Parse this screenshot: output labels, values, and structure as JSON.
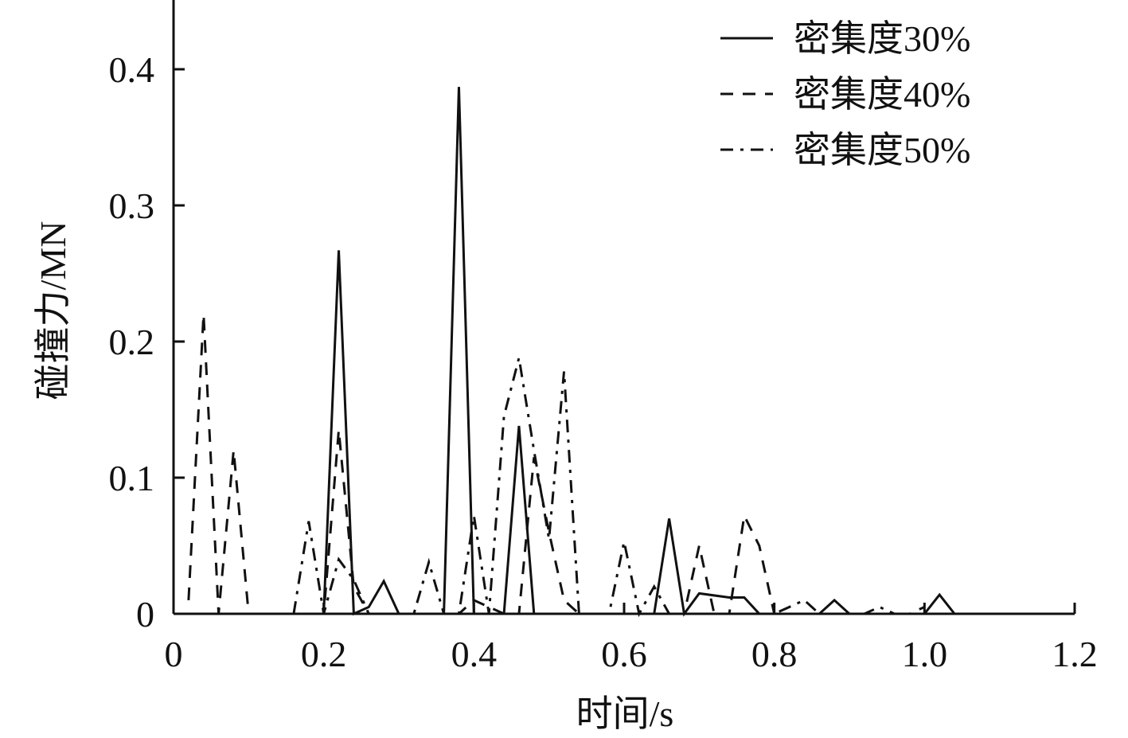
{
  "chart_data": {
    "type": "line",
    "x_label": "时间/s",
    "y_label": "碰撞力/MN",
    "xlim": [
      0,
      1.2
    ],
    "ylim": [
      0,
      0.45
    ],
    "xticks": [
      0,
      0.2,
      0.4,
      0.6,
      0.8,
      {
        "value": 1,
        "label": "1.0"
      },
      1.2
    ],
    "yticks": [
      0,
      0.1,
      0.2,
      0.3,
      0.4
    ],
    "legend": "upper right",
    "series": [
      {
        "name": "密集度30%",
        "color": "#111111",
        "dash": "solid",
        "x": [
          0.2,
          0.22,
          0.24,
          0.26,
          0.28,
          0.3,
          0.36,
          0.38,
          0.4,
          0.44,
          0.46,
          0.48,
          0.64,
          0.66,
          0.68,
          0.7,
          0.74,
          0.76,
          0.78,
          0.86,
          0.88,
          0.9,
          1.0,
          1.02,
          1.04
        ],
        "values": [
          0,
          0.267,
          0,
          0.005,
          0.024,
          0,
          0,
          0.387,
          0,
          0,
          0.138,
          0,
          0,
          0.07,
          0,
          0.015,
          0.012,
          0.012,
          0,
          0,
          0.01,
          0,
          0,
          0.014,
          0
        ]
      },
      {
        "name": "密集度40%",
        "color": "#111111",
        "dash": "dashed",
        "x": [
          0.02,
          0.04,
          0.06,
          0.08,
          0.1,
          0.2,
          0.22,
          0.24,
          0.26,
          0.36,
          0.38,
          0.4,
          0.44,
          0.46,
          0.48,
          0.5,
          0.52,
          0.54,
          0.66,
          0.68,
          0.7,
          0.72,
          0.74,
          0.76,
          0.78,
          0.8,
          0.98,
          1.0
        ],
        "values": [
          0.01,
          0.22,
          0,
          0.12,
          0,
          0,
          0.135,
          0.02,
          0,
          0,
          0,
          0.01,
          0,
          0,
          0.115,
          0.06,
          0.01,
          0,
          0,
          0,
          0.05,
          0,
          0,
          0.072,
          0.05,
          0,
          0,
          0.005
        ]
      },
      {
        "name": "密集度50%",
        "color": "#111111",
        "dash": "dashdot",
        "x": [
          0.16,
          0.18,
          0.2,
          0.22,
          0.24,
          0.26,
          0.32,
          0.34,
          0.36,
          0.38,
          0.4,
          0.42,
          0.44,
          0.46,
          0.48,
          0.5,
          0.52,
          0.54,
          0.58,
          0.6,
          0.62,
          0.64,
          0.66,
          0.8,
          0.82,
          0.84,
          0.86,
          0.92,
          0.94,
          0.96
        ],
        "values": [
          0,
          0.068,
          0,
          0.04,
          0.025,
          0,
          0,
          0.038,
          0,
          0,
          0.072,
          0,
          0.145,
          0.188,
          0.12,
          0.055,
          0.178,
          0,
          0,
          0.053,
          0,
          0.02,
          0,
          0,
          0.005,
          0.01,
          0,
          0,
          0.005,
          0
        ]
      }
    ]
  }
}
